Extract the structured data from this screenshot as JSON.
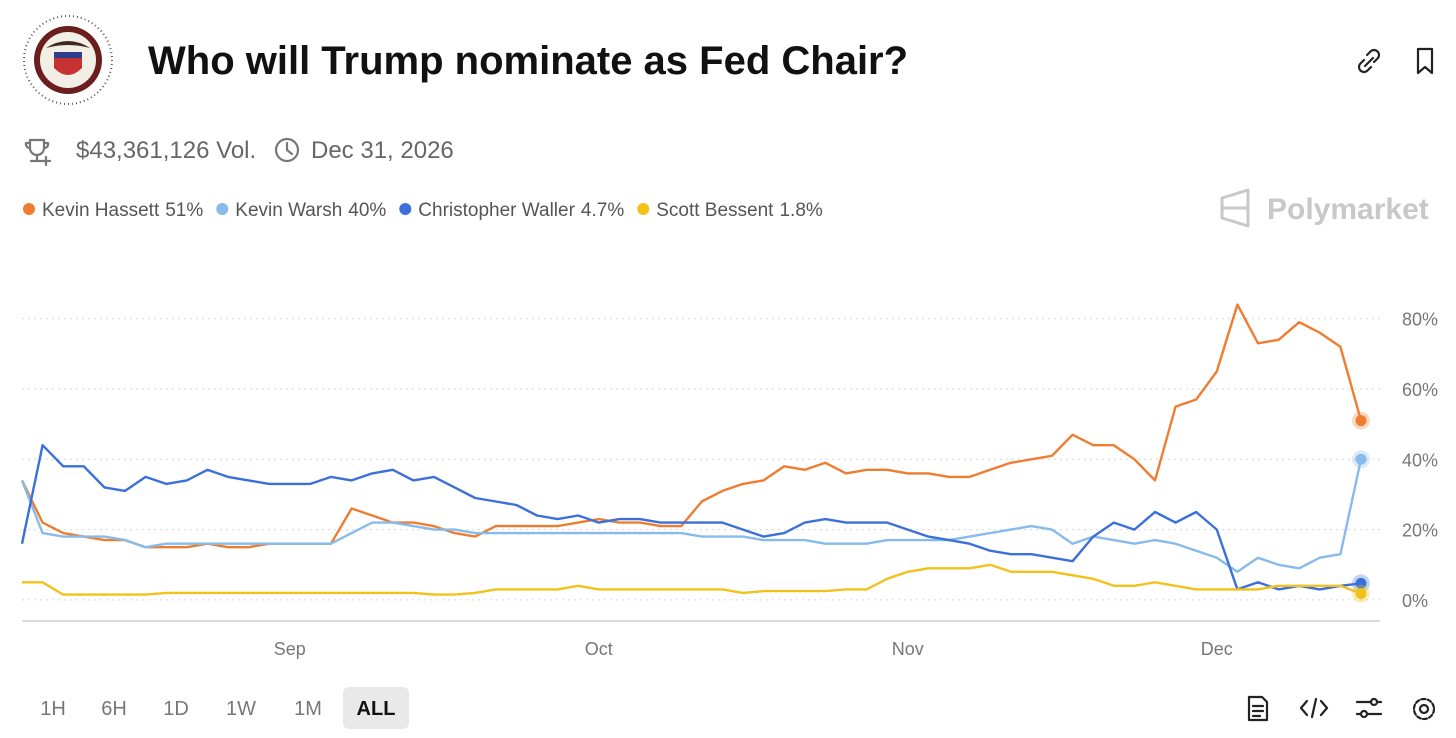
{
  "header": {
    "title": "Who will Trump nominate as Fed Chair?",
    "volume": "$43,361,126 Vol.",
    "end_date": "Dec 31, 2026",
    "watermark": "Polymarket"
  },
  "time_ranges": [
    "1H",
    "6H",
    "1D",
    "1W",
    "1M",
    "ALL"
  ],
  "selected_range": "ALL",
  "chart_data": {
    "type": "line",
    "categories": [
      null,
      null,
      null,
      null,
      null,
      null,
      null,
      null,
      null,
      null,
      null,
      null,
      null,
      "Sep",
      null,
      null,
      null,
      null,
      null,
      null,
      null,
      null,
      null,
      null,
      null,
      null,
      null,
      null,
      "Oct",
      null,
      null,
      null,
      null,
      null,
      null,
      null,
      null,
      null,
      null,
      null,
      null,
      null,
      null,
      "Nov",
      null,
      null,
      null,
      null,
      null,
      null,
      null,
      null,
      null,
      null,
      null,
      null,
      null,
      null,
      "Dec",
      null,
      null,
      null,
      null,
      null,
      null,
      null
    ],
    "series": [
      {
        "name": "Kevin Hassett",
        "current_label": "51%",
        "color": "#ee7d32",
        "values": [
          34,
          22,
          19,
          18,
          17,
          17,
          15,
          15,
          15,
          16,
          15,
          15,
          16,
          16,
          16,
          16,
          26,
          24,
          22,
          22,
          21,
          19,
          18,
          21,
          21,
          21,
          21,
          22,
          23,
          22,
          22,
          21,
          21,
          28,
          31,
          33,
          34,
          38,
          37,
          39,
          36,
          37,
          37,
          36,
          36,
          35,
          35,
          37,
          39,
          40,
          41,
          47,
          44,
          44,
          40,
          34,
          55,
          57,
          65,
          84,
          73,
          74,
          79,
          76,
          72,
          51
        ]
      },
      {
        "name": "Kevin Warsh",
        "current_label": "40%",
        "color": "#86bbec",
        "values": [
          34,
          19,
          18,
          18,
          18,
          17,
          15,
          16,
          16,
          16,
          16,
          16,
          16,
          16,
          16,
          16,
          19,
          22,
          22,
          21,
          20,
          20,
          19,
          19,
          19,
          19,
          19,
          19,
          19,
          19,
          19,
          19,
          19,
          18,
          18,
          18,
          17,
          17,
          17,
          16,
          16,
          16,
          17,
          17,
          17,
          17,
          18,
          19,
          20,
          21,
          20,
          16,
          18,
          17,
          16,
          17,
          16,
          14,
          12,
          8,
          12,
          10,
          9,
          12,
          13,
          40
        ]
      },
      {
        "name": "Christopher Waller",
        "current_label": "4.7%",
        "color": "#3b70da",
        "values": [
          16,
          44,
          38,
          38,
          32,
          31,
          35,
          33,
          34,
          37,
          35,
          34,
          33,
          33,
          33,
          35,
          34,
          36,
          37,
          34,
          35,
          32,
          29,
          28,
          27,
          24,
          23,
          24,
          22,
          23,
          23,
          22,
          22,
          22,
          22,
          20,
          18,
          19,
          22,
          23,
          22,
          22,
          22,
          20,
          18,
          17,
          16,
          14,
          13,
          13,
          12,
          11,
          18,
          22,
          20,
          25,
          22,
          25,
          20,
          3,
          5,
          3,
          4,
          3,
          4,
          4.7
        ]
      },
      {
        "name": "Scott Bessent",
        "current_label": "1.8%",
        "color": "#f2c21b",
        "values": [
          5,
          5,
          1.5,
          1.5,
          1.5,
          1.5,
          1.5,
          2,
          2,
          2,
          2,
          2,
          2,
          2,
          2,
          2,
          2,
          2,
          2,
          2,
          1.5,
          1.5,
          2,
          3,
          3,
          3,
          3,
          4,
          3,
          3,
          3,
          3,
          3,
          3,
          3,
          2,
          2.5,
          2.5,
          2.5,
          2.5,
          3,
          3,
          6,
          8,
          9,
          9,
          9,
          10,
          8,
          8,
          8,
          7,
          6,
          4,
          4,
          5,
          4,
          3,
          3,
          3,
          3,
          4,
          4,
          4,
          4,
          1.8
        ]
      }
    ],
    "ylim": [
      -6,
      91
    ],
    "yticks": [
      {
        "value": 0,
        "label": "0%"
      },
      {
        "value": 20,
        "label": "20%"
      },
      {
        "value": 40,
        "label": "40%"
      },
      {
        "value": 60,
        "label": "60%"
      },
      {
        "value": 80,
        "label": "80%"
      }
    ],
    "grid": true
  }
}
